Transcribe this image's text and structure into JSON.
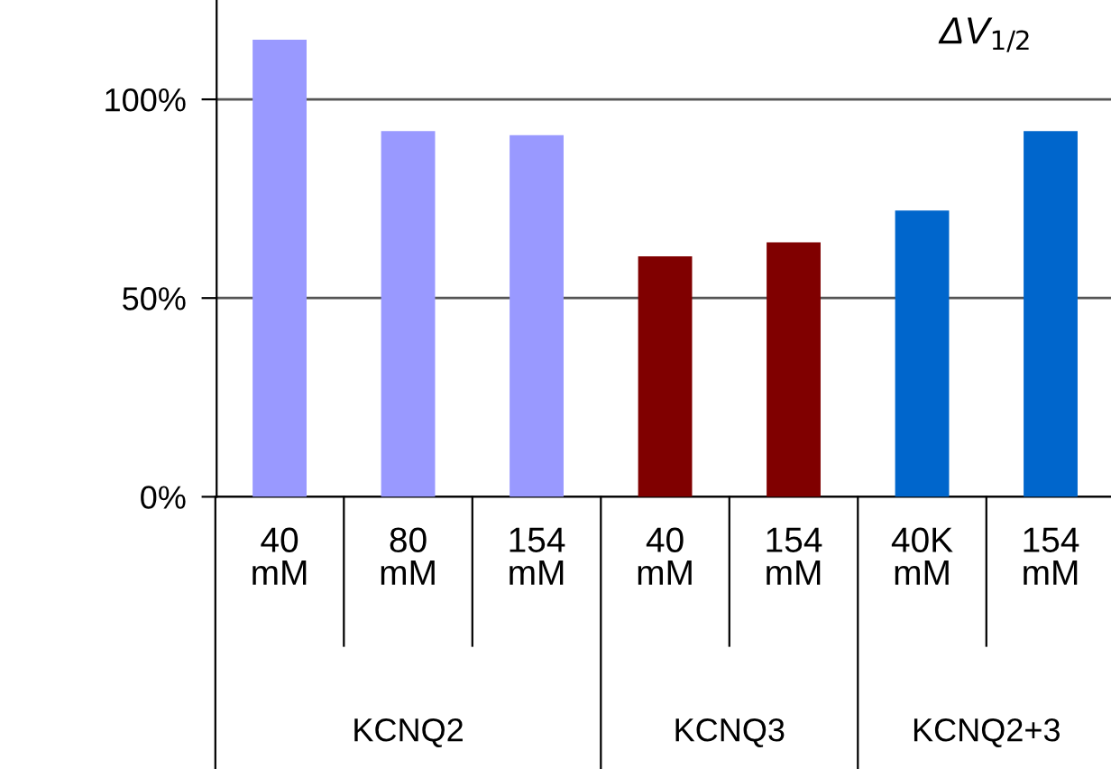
{
  "chart_data": {
    "type": "bar",
    "title": "ΔV$_{1/2}$",
    "categories": [
      "40\nmM",
      "80\nmM",
      "154\nmM",
      "40\nmM",
      "154\nmM",
      "40K\nmM",
      "154\nmM"
    ],
    "values": [
      115,
      92,
      91,
      60.5,
      64,
      72,
      92
    ],
    "colors": [
      "#9999ff",
      "#9999ff",
      "#9999ff",
      "#800000",
      "#800000",
      "#0066cc",
      "#0066cc"
    ],
    "ylim": [
      0,
      125
    ],
    "yticks": [
      {
        "value": 0,
        "label": "0%"
      },
      {
        "value": 50,
        "label": "50%"
      },
      {
        "value": 100,
        "label": "100%"
      }
    ],
    "grid": "y",
    "annotations": [
      "KCNQ2",
      "KCNQ3",
      "KCNQ2+3"
    ]
  }
}
